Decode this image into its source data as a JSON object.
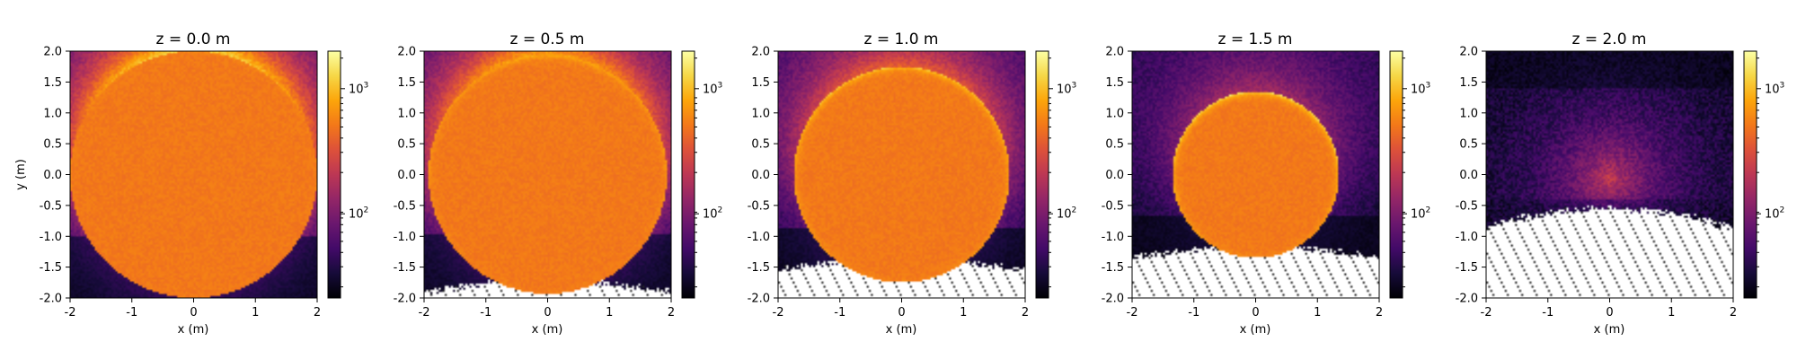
{
  "chart_data": [
    {
      "type": "heatmap",
      "title": "z = 0.0 m",
      "xlabel": "x (m)",
      "ylabel": "y (m)",
      "xlim": [
        -2,
        2
      ],
      "ylim": [
        -2,
        2
      ],
      "disk": {
        "cx": 0.0,
        "cy": 0.0,
        "r": 2.0
      },
      "rim_strength": 0.1,
      "halo_strength": 0.8,
      "nodata_below": null
    },
    {
      "type": "heatmap",
      "title": "z = 0.5 m",
      "xlabel": "x (m)",
      "ylabel": "",
      "xlim": [
        -2,
        2
      ],
      "ylim": [
        -2,
        2
      ],
      "disk": {
        "cx": 0.0,
        "cy": 0.0,
        "r": 1.93
      },
      "rim_strength": 0.4,
      "halo_strength": 0.7,
      "nodata_below": -1.65
    },
    {
      "type": "heatmap",
      "title": "z = 1.0 m",
      "xlabel": "x (m)",
      "ylabel": "",
      "xlim": [
        -2,
        2
      ],
      "ylim": [
        -2,
        2
      ],
      "disk": {
        "cx": 0.0,
        "cy": 0.0,
        "r": 1.75
      },
      "rim_strength": 0.75,
      "halo_strength": 0.55,
      "nodata_below": -1.3
    },
    {
      "type": "heatmap",
      "title": "z = 1.5 m",
      "xlabel": "x (m)",
      "ylabel": "",
      "xlim": [
        -2,
        2
      ],
      "ylim": [
        -2,
        2
      ],
      "disk": {
        "cx": 0.0,
        "cy": 0.0,
        "r": 1.35
      },
      "rim_strength": 0.95,
      "halo_strength": 0.35,
      "nodata_below": -1.1
    },
    {
      "type": "heatmap",
      "title": "z = 2.0 m",
      "xlabel": "x (m)",
      "ylabel": "",
      "xlim": [
        -2,
        2
      ],
      "ylim": [
        -2,
        2
      ],
      "disk": null,
      "rim_strength": 0,
      "halo_strength": 0.45,
      "nodata_below": -0.55
    }
  ],
  "colorbar": {
    "scale": "log",
    "colormap": "inferno",
    "labels": [
      "10",
      "10"
    ],
    "exponents": [
      "3",
      "2"
    ],
    "label_values": [
      1000,
      100
    ]
  },
  "x_ticks": [
    "-2",
    "-1",
    "0",
    "1",
    "2"
  ],
  "y_ticks": [
    "2.0",
    "1.5",
    "1.0",
    "0.5",
    "0.0",
    "-0.5",
    "-1.0",
    "-1.5",
    "-2.0"
  ]
}
